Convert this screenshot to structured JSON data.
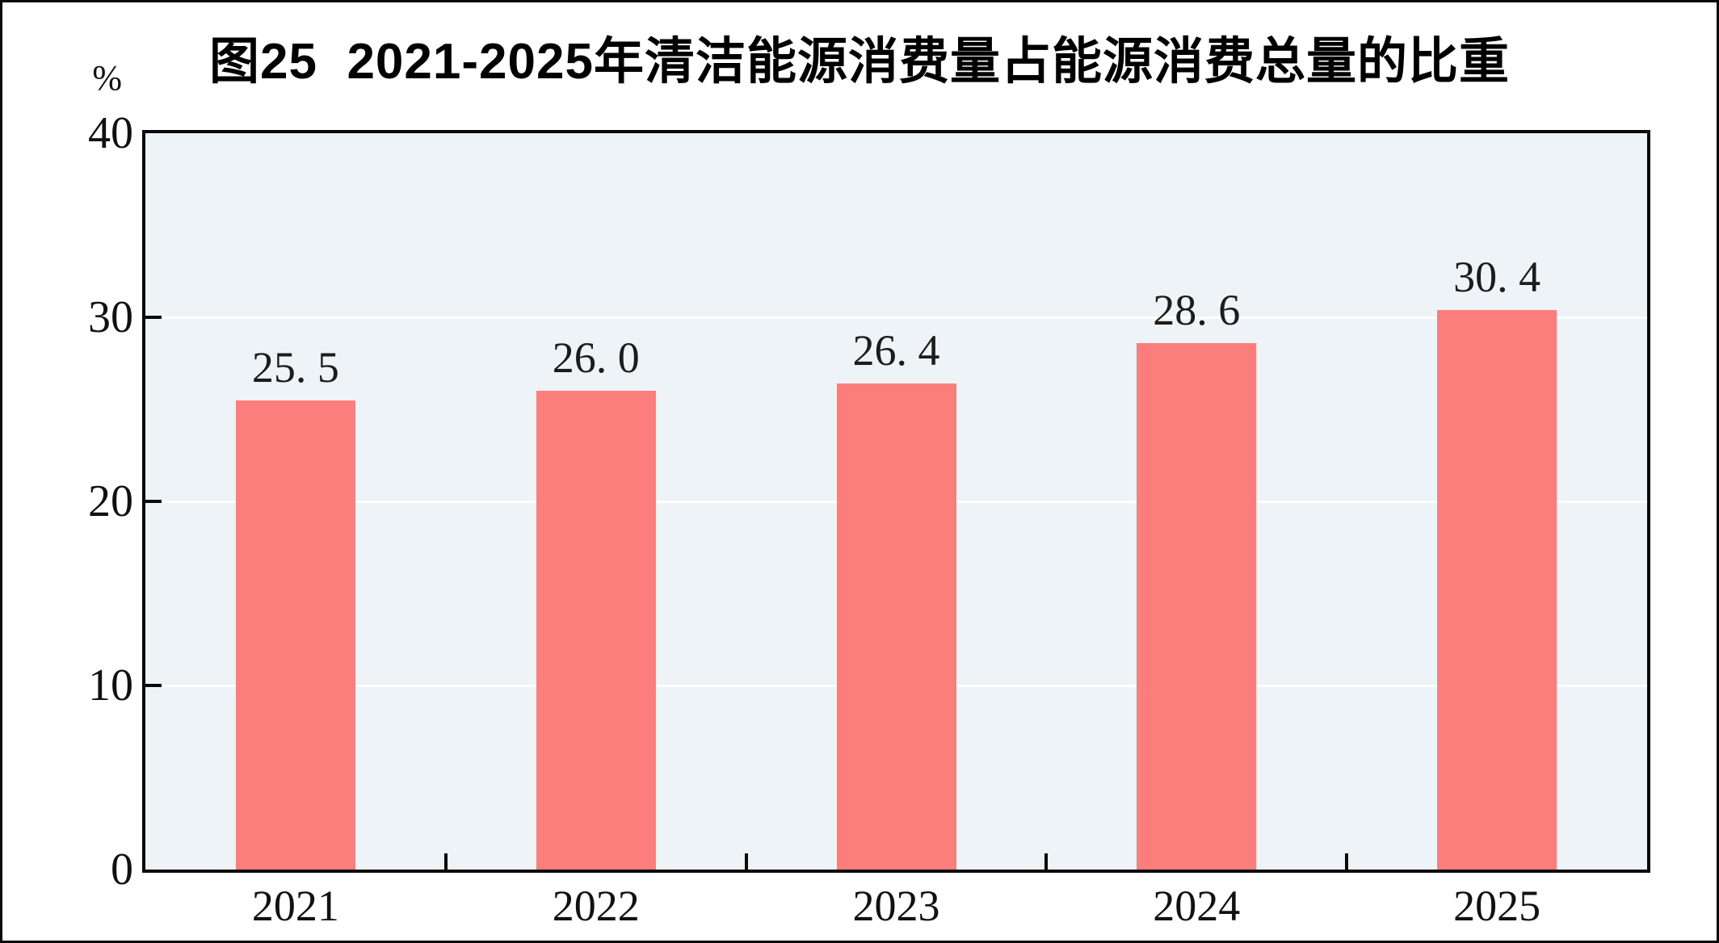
{
  "chart_data": {
    "type": "bar",
    "title": "图25  2021-2025年清洁能源消费量占能源消费总量的比重",
    "unit_label": "%",
    "categories": [
      "2021",
      "2022",
      "2023",
      "2024",
      "2025"
    ],
    "values": [
      25.5,
      26.0,
      26.4,
      28.6,
      30.4
    ],
    "value_labels": [
      "25. 5",
      "26. 0",
      "26. 4",
      "28. 6",
      "30. 4"
    ],
    "ylim": [
      0,
      40
    ],
    "yticks": [
      0,
      10,
      20,
      30,
      40
    ],
    "ytick_labels": [
      "0",
      "10",
      "20",
      "30",
      "40"
    ],
    "gridline_values": [
      10,
      20,
      30
    ],
    "grid": true,
    "legend_position": "none",
    "colors": {
      "bar_fill": "#FB7E7D",
      "plot_background": "#EDF3F6",
      "gridline": "#FFFFFF",
      "axis_frame": "#0a0a0a",
      "text": "#111111"
    }
  }
}
